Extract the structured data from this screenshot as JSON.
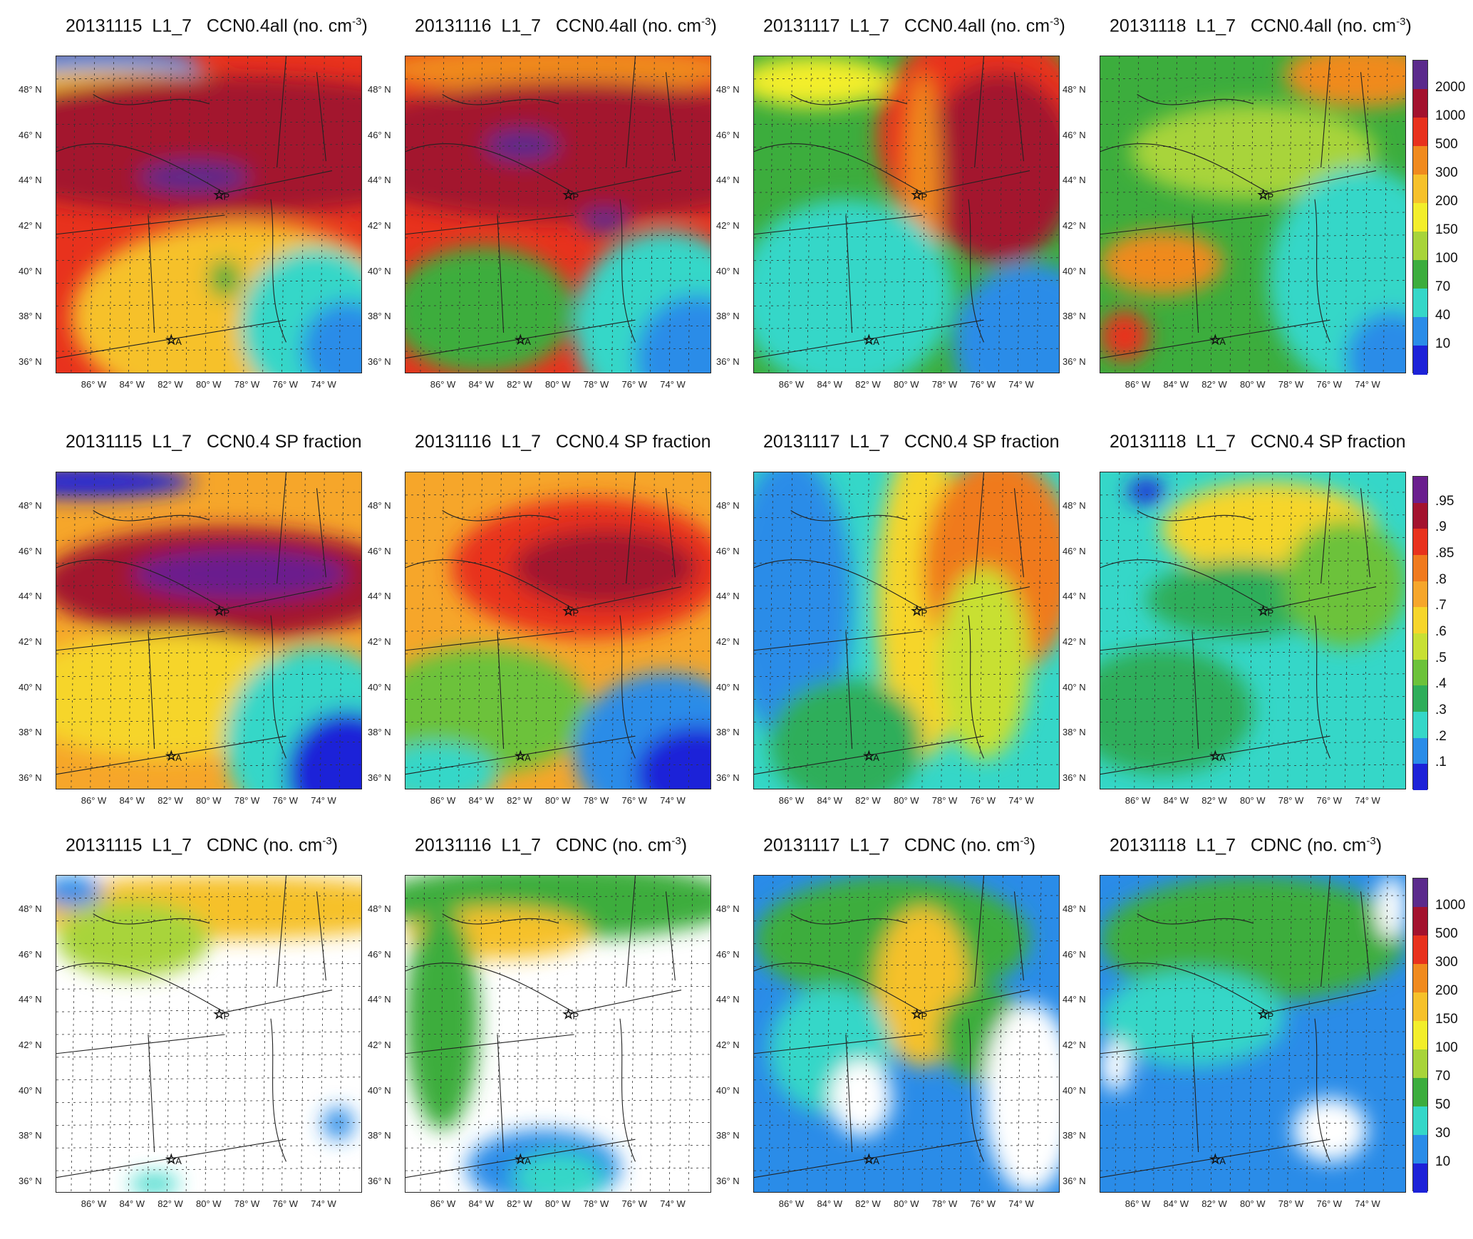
{
  "figure": {
    "rows": [
      {
        "id": "ccn_all",
        "titles": [
          {
            "date": "20131115",
            "level": "L1_7",
            "field": "CCN0.4all (no. cm",
            "exp": "-3",
            "close": ")"
          },
          {
            "date": "20131116",
            "level": "L1_7",
            "field": "CCN0.4all (no. cm",
            "exp": "-3",
            "close": ")"
          },
          {
            "date": "20131117",
            "level": "L1_7",
            "field": "CCN0.4all (no. cm",
            "exp": "-3",
            "close": ")"
          },
          {
            "date": "20131118",
            "level": "L1_7",
            "field": "CCN0.4all (no. cm",
            "exp": "-3",
            "close": ")"
          }
        ],
        "colorbar": {
          "labels": [
            "2000",
            "1000",
            "500",
            "300",
            "200",
            "150",
            "100",
            "70",
            "40",
            "10"
          ],
          "colors": [
            "#5b2a8c",
            "#a3122e",
            "#e8321d",
            "#f08a1e",
            "#f6c12a",
            "#f3ee2a",
            "#a8d43a",
            "#3cad3d",
            "#35d7c8",
            "#2a8ce8",
            "#1d22d8"
          ]
        }
      },
      {
        "id": "sp_fraction",
        "titles": [
          {
            "date": "20131115",
            "level": "L1_7",
            "field": "CCN0.4 SP fraction",
            "exp": "",
            "close": ""
          },
          {
            "date": "20131116",
            "level": "L1_7",
            "field": "CCN0.4 SP fraction",
            "exp": "",
            "close": ""
          },
          {
            "date": "20131117",
            "level": "L1_7",
            "field": "CCN0.4 SP fraction",
            "exp": "",
            "close": ""
          },
          {
            "date": "20131118",
            "level": "L1_7",
            "field": "CCN0.4 SP fraction",
            "exp": "",
            "close": ""
          }
        ],
        "colorbar": {
          "labels": [
            ".95",
            ".9",
            ".85",
            ".8",
            ".7",
            ".6",
            ".5",
            ".4",
            ".3",
            ".2",
            ".1"
          ],
          "colors": [
            "#6a1e8e",
            "#a3122e",
            "#e8321d",
            "#f07a1e",
            "#f6a62a",
            "#f6d52a",
            "#c8e033",
            "#6cc23a",
            "#2fae5a",
            "#35d7c8",
            "#2a8ce8",
            "#1d22d8"
          ]
        }
      },
      {
        "id": "cdnc",
        "titles": [
          {
            "date": "20131115",
            "level": "L1_7",
            "field": "CDNC (no. cm",
            "exp": "-3",
            "close": ")"
          },
          {
            "date": "20131116",
            "level": "L1_7",
            "field": "CDNC (no. cm",
            "exp": "-3",
            "close": ")"
          },
          {
            "date": "20131117",
            "level": "L1_7",
            "field": "CDNC (no. cm",
            "exp": "-3",
            "close": ")"
          },
          {
            "date": "20131118",
            "level": "L1_7",
            "field": "CDNC (no. cm",
            "exp": "-3",
            "close": ")"
          }
        ],
        "colorbar": {
          "labels": [
            "1000",
            "500",
            "300",
            "200",
            "150",
            "100",
            "70",
            "50",
            "30",
            "10"
          ],
          "colors": [
            "#5b2a8c",
            "#a3122e",
            "#e8321d",
            "#f08a1e",
            "#f6c12a",
            "#f3ee2a",
            "#a8d43a",
            "#3cad3d",
            "#35d7c8",
            "#2a8ce8",
            "#1d22d8"
          ]
        }
      }
    ],
    "lat_labels": [
      "48° N",
      "46° N",
      "44° N",
      "42° N",
      "40° N",
      "38° N",
      "36° N"
    ],
    "lon_labels": [
      "86° W",
      "84° W",
      "82° W",
      "80° W",
      "78° W",
      "76° W",
      "74° W"
    ],
    "site_labels": [
      "P",
      "A"
    ]
  },
  "chart_data": {
    "type": "heatmap",
    "description_type": "multi-panel map grid",
    "dates": [
      "20131115",
      "20131116",
      "20131117",
      "20131118"
    ],
    "variables": [
      "CCN0.4all (no. cm-3)",
      "CCN0.4 SP fraction",
      "CDNC (no. cm-3)"
    ],
    "lat_ticks": [
      48,
      46,
      44,
      42,
      40,
      38,
      36
    ],
    "lon_ticks": [
      -86,
      -84,
      -82,
      -80,
      -78,
      -76,
      -74
    ],
    "sites": [
      {
        "label": "P",
        "lat": 43.4,
        "lon": -79.5
      },
      {
        "label": "A",
        "lat": 37.0,
        "lon": -82.0
      }
    ]
  }
}
